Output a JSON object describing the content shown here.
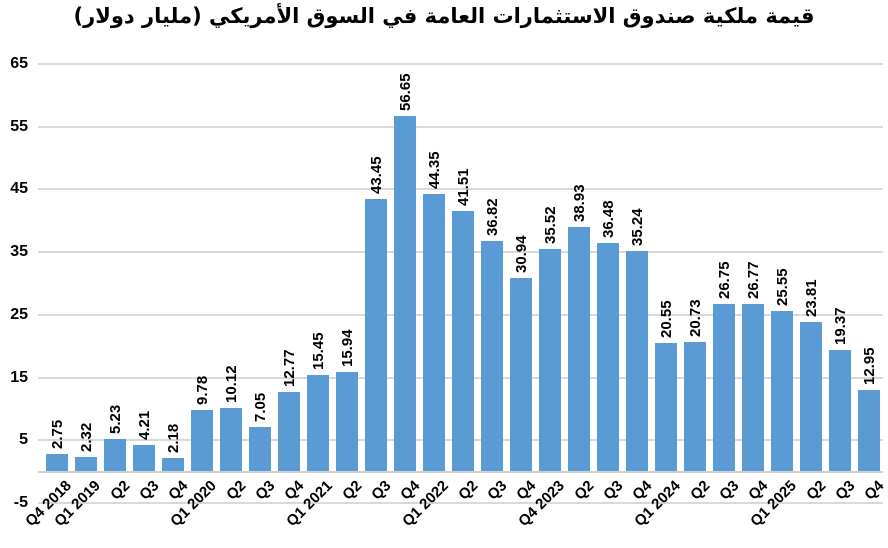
{
  "chart_data": {
    "type": "bar",
    "title": "قيمة ملكية صندوق الاستثمارات العامة في السوق الأمريكي (مليار دولار)",
    "categories": [
      "Q4 2018",
      "Q1 2019",
      "Q2",
      "Q3",
      "Q4",
      "Q1 2020",
      "Q2",
      "Q3",
      "Q4",
      "Q1 2021",
      "Q2",
      "Q3",
      "Q4",
      "Q1 2022",
      "Q2",
      "Q3",
      "Q4",
      "Q4 2023",
      "Q2",
      "Q3",
      "Q4",
      "Q1 2024",
      "Q2",
      "Q3",
      "Q4",
      "Q1 2025",
      "Q2",
      "Q3",
      "Q4"
    ],
    "values": [
      2.75,
      2.32,
      5.23,
      4.21,
      2.18,
      9.78,
      10.12,
      7.05,
      12.77,
      15.45,
      15.94,
      43.45,
      56.65,
      44.35,
      41.51,
      36.82,
      30.94,
      35.52,
      38.93,
      36.48,
      35.24,
      20.55,
      20.73,
      26.75,
      26.77,
      25.55,
      23.81,
      19.37,
      12.95
    ],
    "value_label_format": "2-decimals",
    "xlabel": "",
    "ylabel": "",
    "ylim": [
      -5,
      65
    ],
    "yticks": [
      65,
      55,
      45,
      35,
      25,
      15,
      5,
      -5
    ],
    "grid": true,
    "legend_position": "none",
    "value_labels_rotation_deg": 90,
    "category_labels_rotation_deg": 45,
    "colors": {
      "bar": "#5B9BD5",
      "gridline": "#D9D9D9",
      "axis_line": "#D0D0D0",
      "text": "#000000",
      "background": "#FFFFFF"
    }
  }
}
